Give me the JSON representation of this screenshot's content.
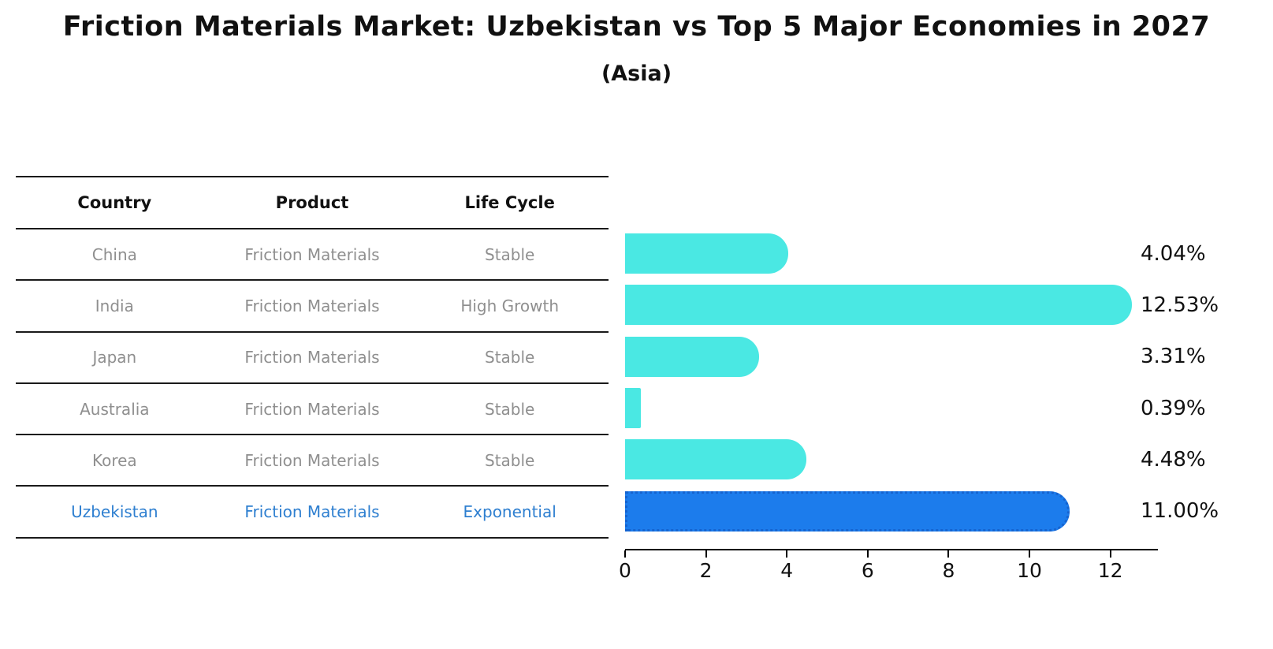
{
  "title": "Friction Materials Market: Uzbekistan vs Top 5 Major Economies in 2027",
  "subtitle": "(Asia)",
  "table": {
    "headers": [
      "Country",
      "Product",
      "Life Cycle"
    ],
    "rows": [
      {
        "country": "China",
        "product": "Friction Materials",
        "life_cycle": "Stable",
        "highlight": false
      },
      {
        "country": "India",
        "product": "Friction Materials",
        "life_cycle": "High Growth",
        "highlight": false
      },
      {
        "country": "Japan",
        "product": "Friction Materials",
        "life_cycle": "Stable",
        "highlight": false
      },
      {
        "country": "Australia",
        "product": "Friction Materials",
        "life_cycle": "Stable",
        "highlight": false
      },
      {
        "country": "Korea",
        "product": "Friction Materials",
        "life_cycle": "Stable",
        "highlight": false
      },
      {
        "country": "Uzbekistan",
        "product": "Friction Materials",
        "life_cycle": "Exponential",
        "highlight": true
      }
    ]
  },
  "chart_data": {
    "type": "bar",
    "orientation": "horizontal",
    "categories": [
      "China",
      "India",
      "Japan",
      "Australia",
      "Korea",
      "Uzbekistan"
    ],
    "values": [
      4.04,
      12.53,
      3.31,
      0.39,
      4.48,
      11.0
    ],
    "value_labels": [
      "4.04%",
      "12.53%",
      "3.31%",
      "0.39%",
      "4.48%",
      "11.00%"
    ],
    "title": "Friction Materials Market: Uzbekistan vs Top 5 Major Economies in 2027",
    "subtitle": "(Asia)",
    "xlabel": "",
    "ylabel": "",
    "xlim": [
      0,
      13.2
    ],
    "x_ticks": [
      0,
      2,
      4,
      6,
      8,
      10,
      12
    ],
    "grid": false,
    "legend": false,
    "highlight_index": 5
  },
  "colors": {
    "bar_default": "#4AE8E3",
    "bar_highlight": "#1C7CEC",
    "highlight_border": "#1563CF",
    "highlight_text": "#2E7FD0",
    "row_text": "#8f8f8f",
    "header_text": "#111111",
    "axis": "#000000"
  }
}
